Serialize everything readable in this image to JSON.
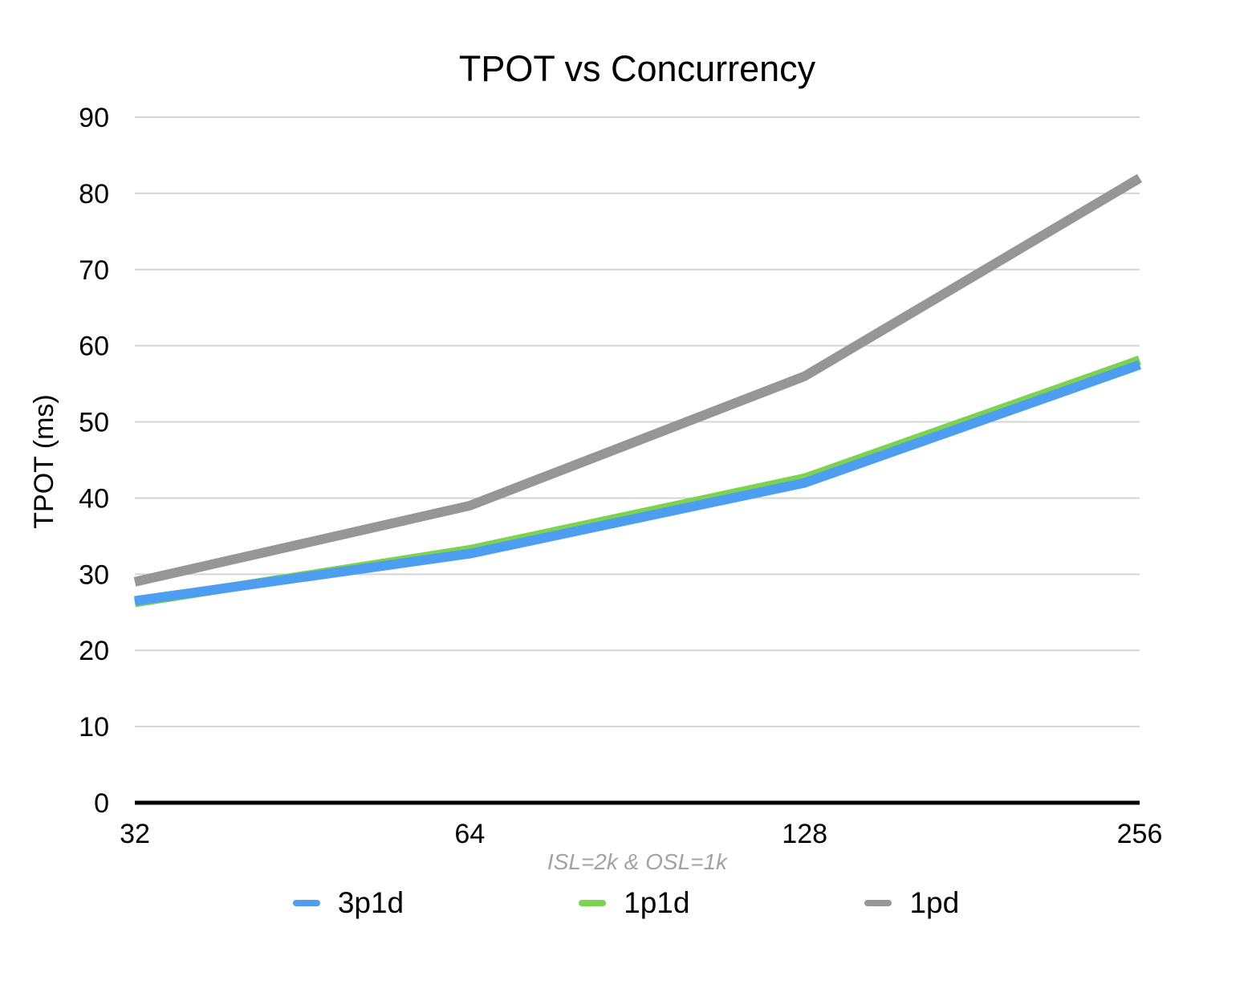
{
  "chart_data": {
    "type": "line",
    "title": "TPOT vs Concurrency",
    "ylabel": "TPOT (ms)",
    "xlabel": "ISL=2k & OSL=1k",
    "categories": [
      "32",
      "64",
      "128",
      "256"
    ],
    "series": [
      {
        "name": "3p1d",
        "color": "#4D9EF0",
        "values": [
          26.5,
          32.7,
          42.0,
          57.5
        ]
      },
      {
        "name": "1p1d",
        "color": "#7BD34F",
        "values": [
          26.3,
          33.2,
          42.6,
          58.1
        ]
      },
      {
        "name": "1pd",
        "color": "#969696",
        "values": [
          29.0,
          39.0,
          56.0,
          82.0
        ]
      }
    ],
    "ylim": [
      0,
      90
    ],
    "ytick_interval": 10,
    "grid": true,
    "legend_position": "bottom",
    "colors": {
      "gridline": "#D4D4D4",
      "axis": "#000000",
      "tick_label": "#000000",
      "subtitle": "#A3A3A3"
    }
  }
}
